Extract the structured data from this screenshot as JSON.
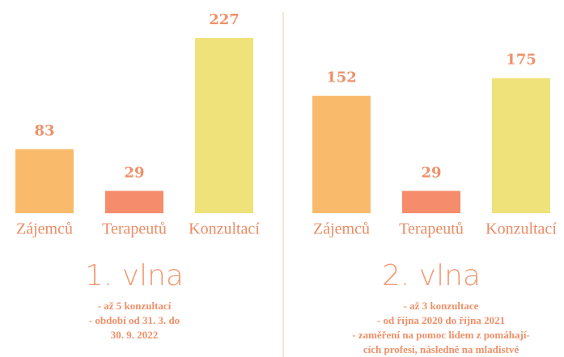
{
  "chart_data": [
    {
      "type": "bar",
      "title": "1. vlna",
      "categories": [
        "Zájemců",
        "Terapeutů",
        "Konzultací"
      ],
      "values": [
        83,
        29,
        227
      ],
      "colors": [
        "#f9bb6b",
        "#f58c6c",
        "#efe27a"
      ],
      "notes": [
        "- až 5 konzultací",
        "- období od 31. 3. do",
        "30. 9. 2022"
      ]
    },
    {
      "type": "bar",
      "title": "2. vlna",
      "categories": [
        "Zájemců",
        "Terapeutů",
        "Konzultací"
      ],
      "values": [
        152,
        29,
        175
      ],
      "colors": [
        "#f9bb6b",
        "#f58c6c",
        "#efe27a"
      ],
      "notes": [
        "- až 3 konzultace",
        "- od října 2020 do října 2021",
        "- zaměření na pomoc lidem z pomáhají-",
        "cích profesí, následně na mladistvé"
      ]
    }
  ]
}
